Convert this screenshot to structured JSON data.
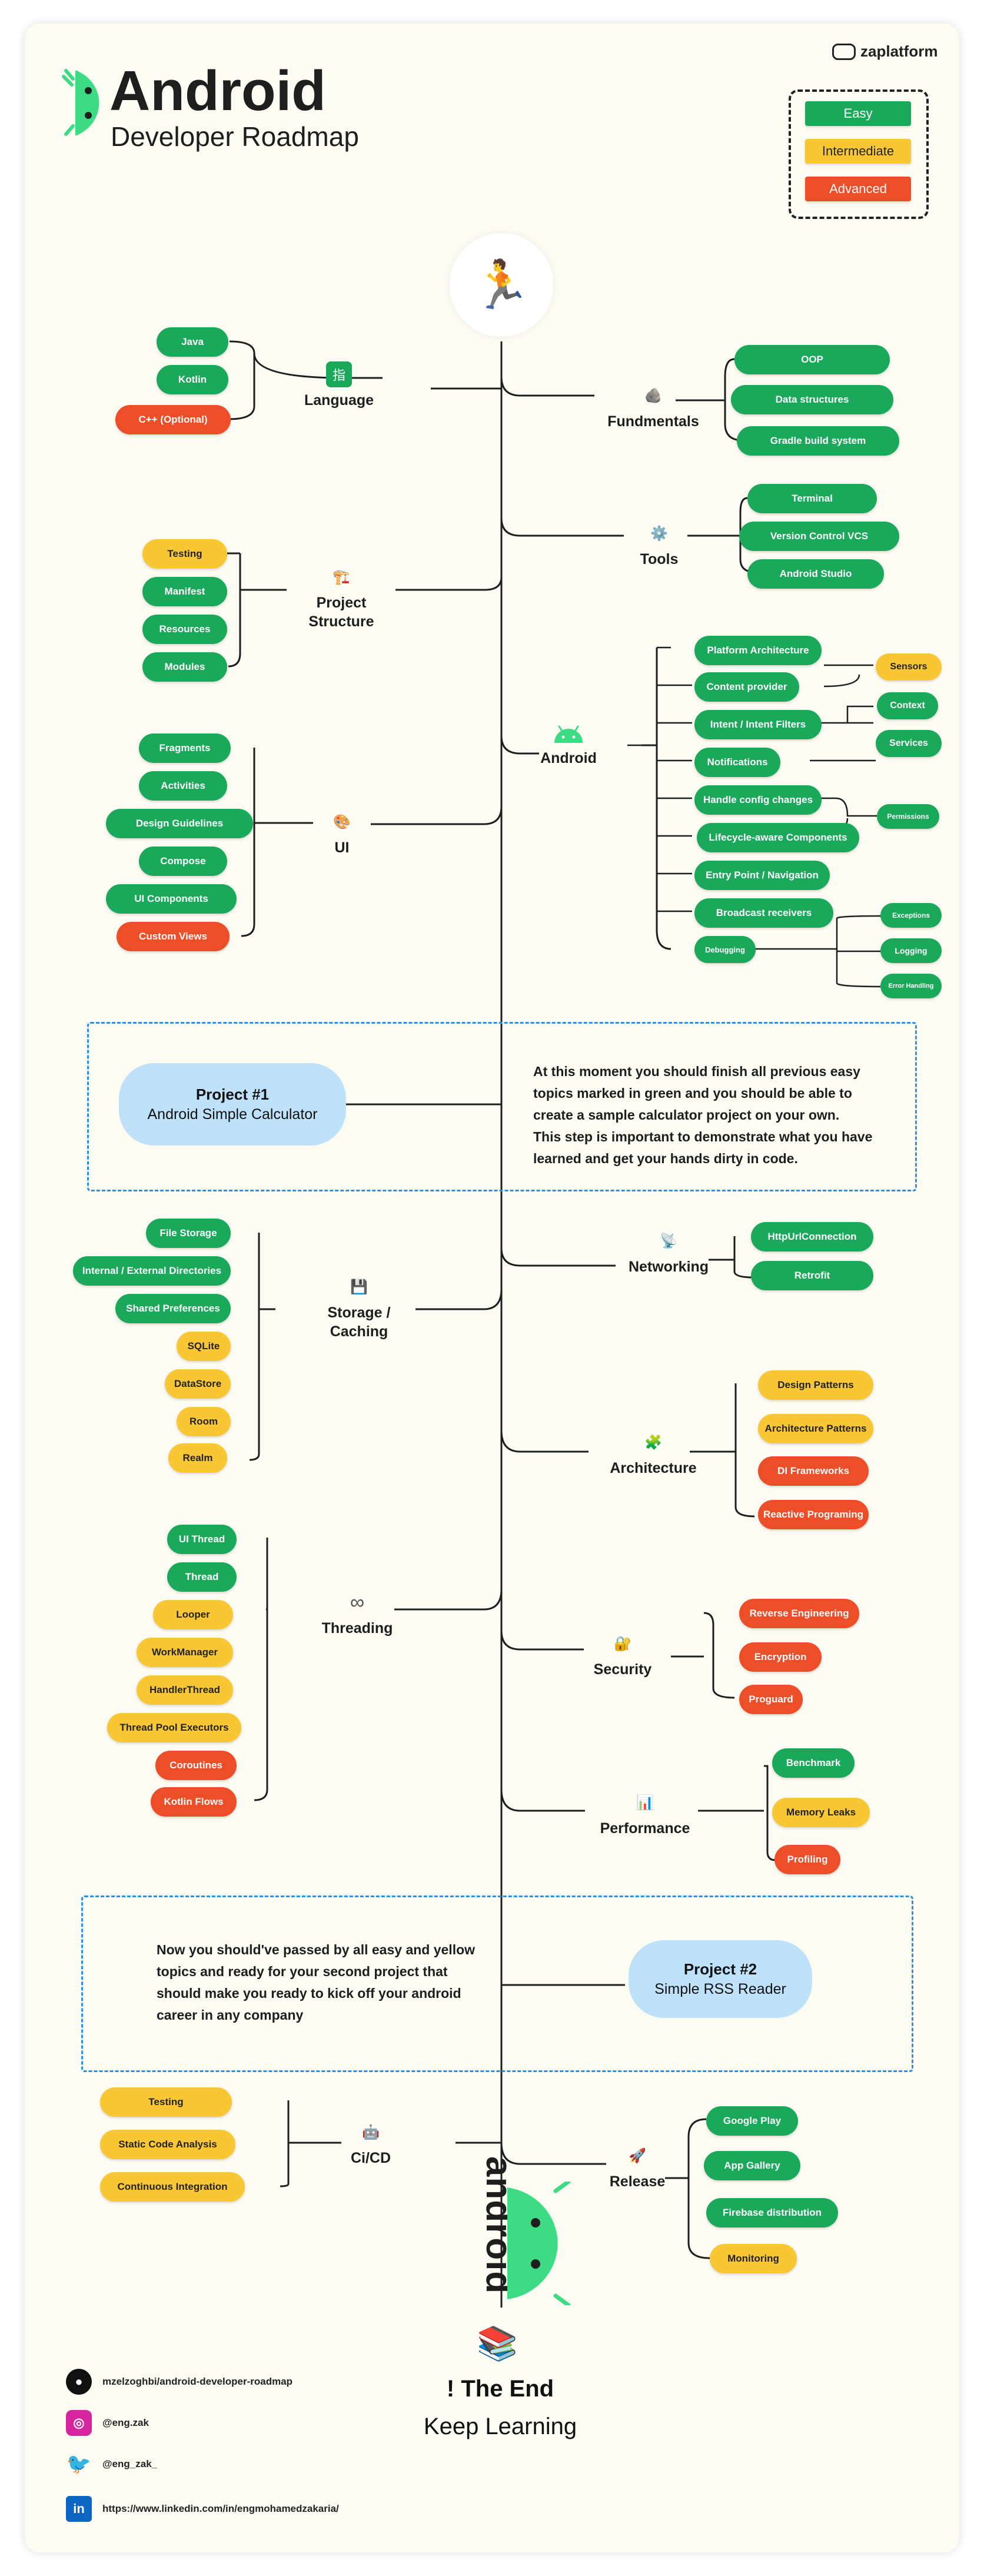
{
  "brand": {
    "name": "zaplatform"
  },
  "header": {
    "title": "Android",
    "subtitle": "Developer Roadmap"
  },
  "legend": {
    "easy": "Easy",
    "intermediate": "Intermediate",
    "advanced": "Advanced"
  },
  "colors": {
    "easy": "#1aa85a",
    "intermediate": "#f9c734",
    "advanced": "#ee4e27",
    "project": "#bfe2fb",
    "dash": "#2f8fe3"
  },
  "start_icon": "runner-icon",
  "sections": {
    "language": {
      "label": "Language",
      "icon": "language-icon",
      "items": [
        "Java",
        "Kotlin",
        "C++ (Optional)"
      ]
    },
    "fundamentals": {
      "label": "Fundmentals",
      "icon": "rock-icon",
      "items": [
        "OOP",
        "Data structures",
        "Gradle build system"
      ]
    },
    "tools": {
      "label": "Tools",
      "icon": "gear-icon",
      "items": [
        "Terminal",
        "Version Control VCS",
        "Android Studio"
      ]
    },
    "project_structure": {
      "label1": "Project",
      "label2": "Structure",
      "icon": "crane-icon",
      "items": [
        "Testing",
        "Manifest",
        "Resources",
        "Modules"
      ]
    },
    "android": {
      "label": "Android",
      "icon": "android-icon",
      "items": [
        "Platform Architecture",
        "Content provider",
        "Intent / Intent Filters",
        "Notifications",
        "Handle config changes",
        "Lifecycle-aware Components",
        "Entry Point / Navigation",
        "Broadcast receivers",
        "Debugging"
      ],
      "side": [
        "Sensors",
        "Context",
        "Services",
        "Permissions"
      ],
      "debug": [
        "Exceptions",
        "Logging",
        "Error Handling"
      ]
    },
    "ui": {
      "label": "UI",
      "icon": "palette-icon",
      "items": [
        "Fragments",
        "Activities",
        "Design Guidelines",
        "Compose",
        "UI Components",
        "Custom Views"
      ]
    },
    "networking": {
      "label": "Networking",
      "icon": "satellite-icon",
      "items": [
        "HttpUrlConnection",
        "Retrofit"
      ]
    },
    "storage": {
      "label1": "Storage /",
      "label2": "Caching",
      "icon": "floppy-icon",
      "items": [
        "File Storage",
        "Internal / External Directories",
        "Shared Preferences",
        "SQLite",
        "DataStore",
        "Room",
        "Realm"
      ]
    },
    "architecture": {
      "label": "Architecture",
      "icon": "puzzle-icon",
      "items": [
        "Design Patterns",
        "Architecture Patterns",
        "DI Frameworks",
        "Reactive Programing"
      ]
    },
    "threading": {
      "label": "Threading",
      "icon": "infinity-icon",
      "items": [
        "UI Thread",
        "Thread",
        "Looper",
        "WorkManager",
        "HandlerThread",
        "Thread Pool Executors",
        "Coroutines",
        "Kotlin Flows"
      ]
    },
    "security": {
      "label": "Security",
      "icon": "lock-icon",
      "items": [
        "Reverse Engineering",
        "Encryption",
        "Proguard"
      ]
    },
    "performance": {
      "label": "Performance",
      "icon": "chart-icon",
      "items": [
        "Benchmark",
        "Memory Leaks",
        "Profiling"
      ]
    },
    "cicd": {
      "label": "Ci/CD",
      "icon": "robot-icon",
      "items": [
        "Testing",
        "Static Code Analysis",
        "Continuous Integration"
      ]
    },
    "release": {
      "label": "Release",
      "icon": "rocket-icon",
      "items": [
        "Google Play",
        "App Gallery",
        "Firebase distribution",
        "Monitoring"
      ]
    }
  },
  "project1": {
    "title": "Project #1",
    "subtitle": "Android Simple Calculator",
    "text": [
      "At this moment you should finish all previous easy",
      "topics marked in green and you should be able to",
      "create a sample calculator project on your own.",
      "This step is important to demonstrate what you have",
      "learned and get your hands dirty in code."
    ]
  },
  "project2": {
    "title": "Project #2",
    "subtitle": "Simple RSS Reader",
    "text": [
      "Now you should've passed by all easy and yellow",
      "topics and ready for your second project that",
      "should make you ready to kick off your android",
      "career in any company"
    ]
  },
  "android_wordmark": "android",
  "end": {
    "title": "! The End",
    "subtitle": "Keep Learning"
  },
  "footer": {
    "github": "mzelzoghbi/android-developer-roadmap",
    "instagram": "@eng.zak",
    "twitter": "@eng_zak_",
    "linkedin": "https://www.linkedin.com/in/engmohamedzakaria/"
  }
}
